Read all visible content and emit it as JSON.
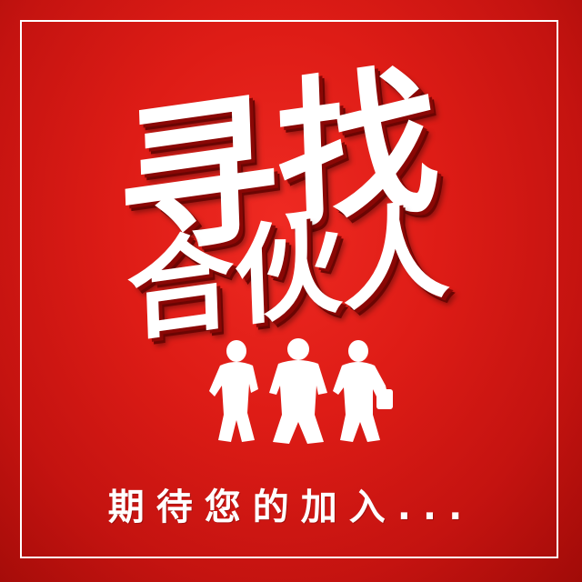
{
  "headline": {
    "line1": [
      "寻",
      "找"
    ],
    "line2": [
      "合",
      "伙",
      "人"
    ]
  },
  "footer": {
    "text": "期待您的加入..."
  },
  "icons": {
    "figures": "three-people-silhouette-icon"
  },
  "colors": {
    "background": "#d9201a",
    "text": "#ffffff",
    "shadow": "#8a0705"
  }
}
